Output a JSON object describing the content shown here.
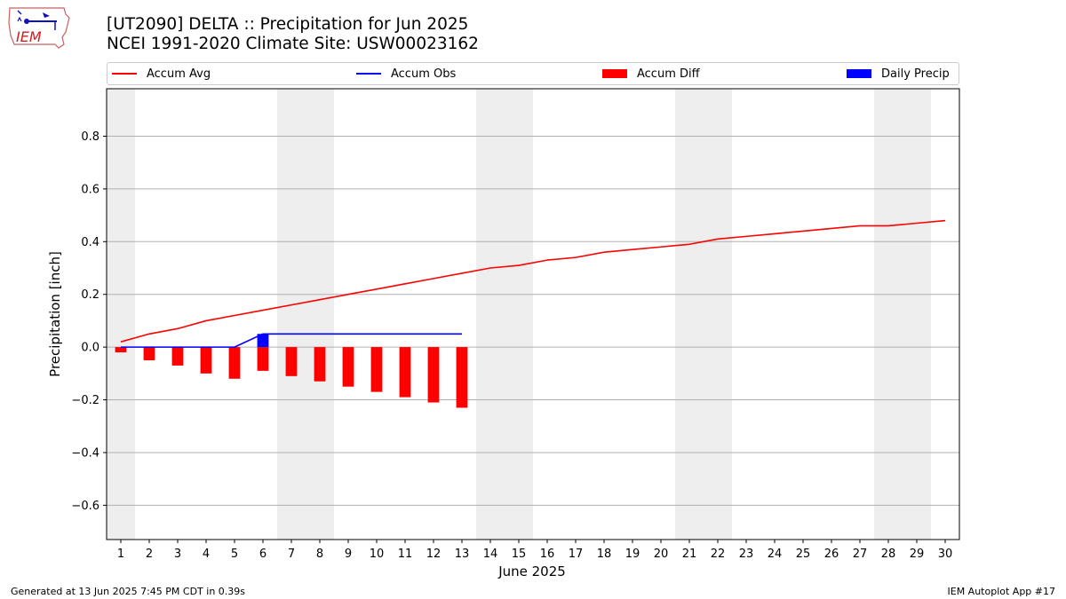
{
  "header": {
    "title_line1": "[UT2090] DELTA :: Precipitation for Jun 2025",
    "title_line2": "NCEI 1991-2020 Climate Site: USW00023162"
  },
  "logo": {
    "text": "IEM"
  },
  "footer": {
    "generated": "Generated at 13 Jun 2025 7:45 PM CDT in 0.39s",
    "app": "IEM Autoplot App #17"
  },
  "colors": {
    "avg": "#ff0000",
    "obs": "#0000ff",
    "diff": "#ff0000",
    "daily": "#0000ff",
    "weekend": "#eeeeee",
    "grid": "#b0b0b0"
  },
  "chart_data": {
    "type": "bar",
    "xlabel": "June 2025",
    "ylabel": "Precipitation [inch]",
    "xlim": [
      0.5,
      30.5
    ],
    "ylim": [
      -0.73,
      0.98
    ],
    "yticks": [
      -0.6,
      -0.4,
      -0.2,
      0.0,
      0.2,
      0.4,
      0.6,
      0.8
    ],
    "ytick_labels": [
      "−0.6",
      "−0.4",
      "−0.2",
      "0.0",
      "0.2",
      "0.4",
      "0.6",
      "0.8"
    ],
    "days": [
      1,
      2,
      3,
      4,
      5,
      6,
      7,
      8,
      9,
      10,
      11,
      12,
      13,
      14,
      15,
      16,
      17,
      18,
      19,
      20,
      21,
      22,
      23,
      24,
      25,
      26,
      27,
      28,
      29,
      30
    ],
    "day_labels": [
      "1",
      "2",
      "3",
      "4",
      "5",
      "6",
      "7",
      "8",
      "9",
      "10",
      "11",
      "12",
      "13",
      "14",
      "15",
      "16",
      "17",
      "18",
      "19",
      "20",
      "21",
      "22",
      "23",
      "24",
      "25",
      "26",
      "27",
      "28",
      "29",
      "30"
    ],
    "grid": "horizontal",
    "legend": {
      "placement": "top",
      "entries": [
        "Accum Avg",
        "Accum Obs",
        "Accum Diff",
        "Daily Precip"
      ]
    },
    "weekend_days": [
      1,
      7,
      8,
      14,
      15,
      21,
      22,
      28,
      29
    ],
    "series": [
      {
        "name": "Accum Avg",
        "kind": "line",
        "values": [
          0.02,
          0.05,
          0.07,
          0.1,
          0.12,
          0.14,
          0.16,
          0.18,
          0.2,
          0.22,
          0.24,
          0.26,
          0.28,
          0.3,
          0.31,
          0.33,
          0.34,
          0.36,
          0.37,
          0.38,
          0.39,
          0.41,
          0.42,
          0.43,
          0.44,
          0.45,
          0.46,
          0.46,
          0.47,
          0.48
        ]
      },
      {
        "name": "Accum Obs",
        "kind": "line",
        "values": [
          0,
          0,
          0,
          0,
          0,
          0.05,
          0.05,
          0.05,
          0.05,
          0.05,
          0.05,
          0.05,
          0.05
        ]
      },
      {
        "name": "Accum Diff",
        "kind": "bar",
        "values": [
          -0.02,
          -0.05,
          -0.07,
          -0.1,
          -0.12,
          -0.09,
          -0.11,
          -0.13,
          -0.15,
          -0.17,
          -0.19,
          -0.21,
          -0.23
        ]
      },
      {
        "name": "Daily Precip",
        "kind": "bar",
        "values": [
          0,
          0,
          0,
          0,
          0,
          0.05,
          0,
          0,
          0,
          0,
          0,
          0,
          0
        ]
      }
    ]
  }
}
